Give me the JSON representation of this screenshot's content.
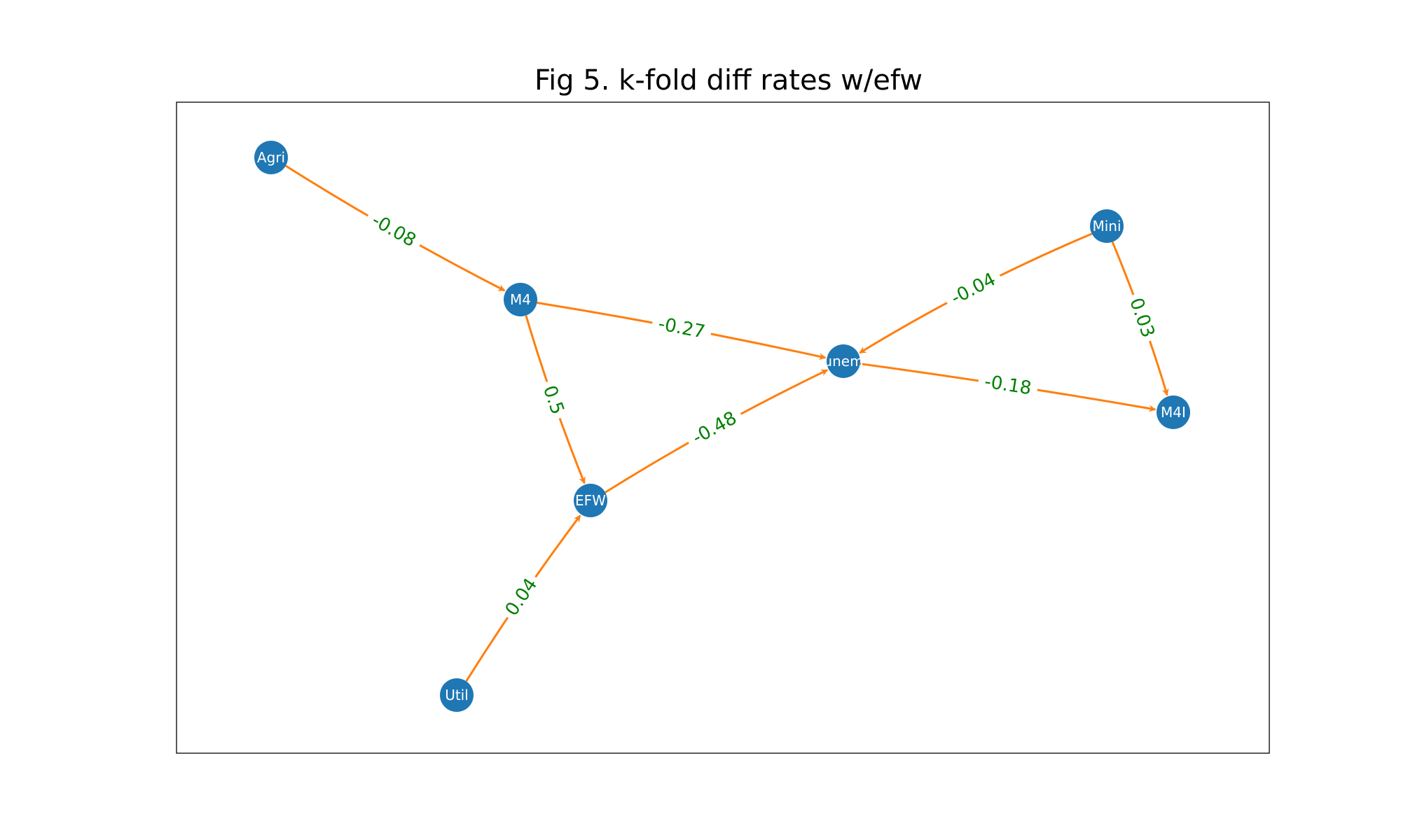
{
  "title": "Fig 5. k-fold diff rates w/efw",
  "colors": {
    "node": "#1f77b4",
    "node_text": "#ffffff",
    "edge": "#ff7f0e",
    "edge_label": "#008000",
    "frame": "#000000"
  },
  "nodes": [
    {
      "id": "Agri",
      "label": "Agri"
    },
    {
      "id": "M4",
      "label": "M4"
    },
    {
      "id": "unem",
      "label": "unem"
    },
    {
      "id": "EFW",
      "label": "EFW"
    },
    {
      "id": "Util",
      "label": "Util"
    },
    {
      "id": "Mini",
      "label": "Mini"
    },
    {
      "id": "M4I",
      "label": "M4I"
    }
  ],
  "edges": [
    {
      "source": "Agri",
      "target": "M4",
      "label": "-0.08"
    },
    {
      "source": "M4",
      "target": "unem",
      "label": "-0.27"
    },
    {
      "source": "M4",
      "target": "EFW",
      "label": "0.5"
    },
    {
      "source": "EFW",
      "target": "unem",
      "label": "-0.48"
    },
    {
      "source": "Util",
      "target": "EFW",
      "label": "0.04"
    },
    {
      "source": "Mini",
      "target": "unem",
      "label": "-0.04"
    },
    {
      "source": "Mini",
      "target": "M4I",
      "label": "0.03"
    },
    {
      "source": "unem",
      "target": "M4I",
      "label": "-0.18"
    }
  ]
}
